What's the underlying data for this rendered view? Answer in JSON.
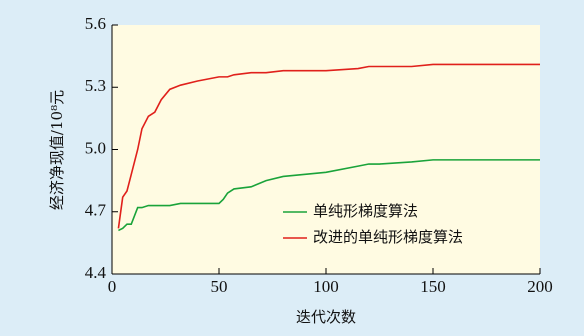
{
  "chart_data": {
    "type": "line",
    "xlabel": "迭代次数",
    "ylabel": "经济净现值/10⁸元",
    "x": [
      3,
      5,
      7,
      9,
      12,
      14,
      17,
      20,
      23,
      27,
      32,
      40,
      50,
      52,
      54,
      57,
      65,
      72,
      80,
      100,
      115,
      120,
      125,
      140,
      150,
      200
    ],
    "series": [
      {
        "name": "单纯形梯度算法",
        "color": "#1aa33a",
        "values": [
          4.61,
          4.62,
          4.64,
          4.64,
          4.72,
          4.72,
          4.73,
          4.73,
          4.73,
          4.73,
          4.74,
          4.74,
          4.74,
          4.76,
          4.79,
          4.81,
          4.82,
          4.85,
          4.87,
          4.89,
          4.92,
          4.93,
          4.93,
          4.94,
          4.95,
          4.95
        ]
      },
      {
        "name": "改进的单纯形梯度算法",
        "color": "#e0201b",
        "values": [
          4.62,
          4.77,
          4.8,
          4.88,
          5.0,
          5.1,
          5.16,
          5.18,
          5.24,
          5.29,
          5.31,
          5.33,
          5.35,
          5.35,
          5.35,
          5.36,
          5.37,
          5.37,
          5.38,
          5.38,
          5.39,
          5.4,
          5.4,
          5.4,
          5.41,
          5.41
        ]
      }
    ],
    "xlim": [
      0,
      200
    ],
    "xticks": [
      0,
      50,
      100,
      150,
      200
    ],
    "ylim": [
      4.4,
      5.6
    ],
    "yticks": [
      4.4,
      4.7,
      {
        "value": 5,
        "label": "5.0"
      },
      5.3,
      5.6
    ],
    "legend": "lower right"
  }
}
